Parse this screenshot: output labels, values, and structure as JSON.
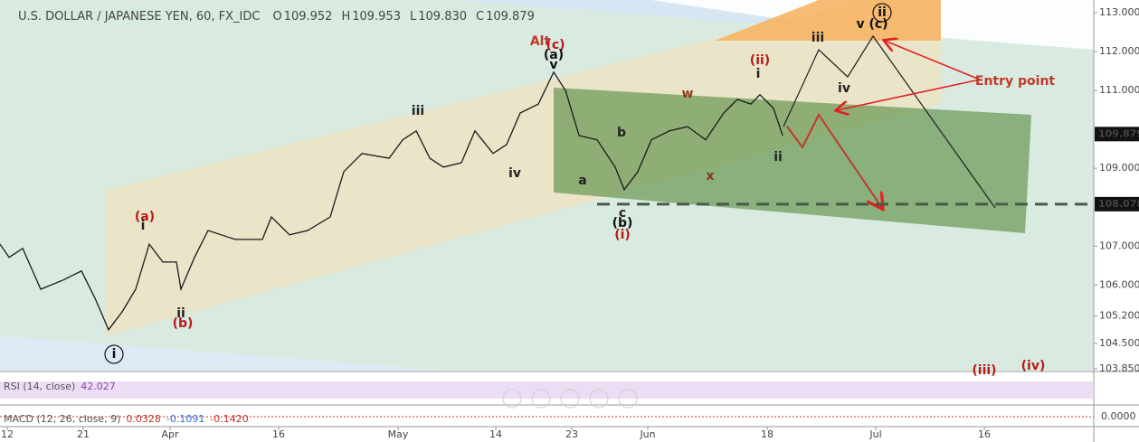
{
  "header": {
    "symbol": "U.S. DOLLAR / JAPANESE YEN, 60, FX_IDC",
    "ohlc": [
      {
        "name": "O",
        "text": "109.952"
      },
      {
        "name": "H",
        "text": "109.953"
      },
      {
        "name": "L",
        "text": "109.830"
      },
      {
        "name": "C",
        "text": "109.879"
      }
    ]
  },
  "chart_data": {
    "type": "line",
    "color": "#1a1a1a",
    "x": [
      -0.67,
      0.17,
      1.42,
      3.08,
      5.17,
      6.83,
      8.08,
      9.33,
      10.58,
      11.83,
      13.08,
      14.33,
      15.58,
      16,
      17.25,
      18.5,
      21,
      23.5,
      24.33,
      26,
      27.67,
      29.75,
      31,
      32.67,
      35.17,
      36.42,
      37.67,
      38.92,
      40.17,
      41.83,
      43.08,
      44.75,
      46,
      47.25,
      48.92,
      50.33,
      51.42,
      52.67,
      54.33,
      56,
      56.83,
      58.08,
      59.33,
      61,
      62.67,
      64.33,
      66,
      67.25,
      68.5,
      69.33,
      70.58,
      71.42
    ],
    "values": [
      107.05,
      106.71,
      106.94,
      105.89,
      106.13,
      106.36,
      105.66,
      104.85,
      105.31,
      105.89,
      107.05,
      106.59,
      106.59,
      105.89,
      106.71,
      107.4,
      107.17,
      107.17,
      107.75,
      107.29,
      107.4,
      107.75,
      108.91,
      109.38,
      109.26,
      109.73,
      109.96,
      109.26,
      109.03,
      109.14,
      109.96,
      109.38,
      109.61,
      110.42,
      110.65,
      111.47,
      111.0,
      109.84,
      109.73,
      109.03,
      108.45,
      108.91,
      109.73,
      109.96,
      110.07,
      109.73,
      110.42,
      110.77,
      110.65,
      110.89,
      110.54,
      109.84
    ],
    "xlim": [
      -0.67,
      100.08
    ],
    "xticks": [
      {
        "value": 0,
        "label": "12"
      },
      {
        "value": 7,
        "label": "21"
      },
      {
        "value": 15,
        "label": "Apr"
      },
      {
        "value": 25,
        "label": "16"
      },
      {
        "value": 36,
        "label": "May"
      },
      {
        "value": 45,
        "label": "14"
      },
      {
        "value": 52,
        "label": "23"
      },
      {
        "value": 59,
        "label": "Jun"
      },
      {
        "value": 70,
        "label": "18"
      },
      {
        "value": 80,
        "label": "Jul"
      },
      {
        "value": 90,
        "label": "16"
      }
    ],
    "ylim": [
      103.8,
      113.325
    ],
    "yticks": [
      {
        "value": 113,
        "label": "113.000"
      },
      {
        "value": 112,
        "label": "112.000"
      },
      {
        "value": 111,
        "label": "111.000"
      },
      {
        "value": 109,
        "label": "109.000"
      },
      {
        "value": 107,
        "label": "107.000"
      },
      {
        "value": 106,
        "label": "106.000"
      },
      {
        "value": 105.2,
        "label": "105.200"
      },
      {
        "value": 104.5,
        "label": "104.500"
      },
      {
        "value": 103.85,
        "label": "103.850"
      }
    ],
    "price_markers": [
      {
        "value": 109.879,
        "label": "109.879"
      },
      {
        "value": 108.078,
        "label": "108.078",
        "dashed": true
      }
    ],
    "annotations": [
      {
        "text": "Alt",
        "color": "#c0392b",
        "small": true
      },
      {
        "text": "(c)",
        "color": "#b71c1c"
      },
      {
        "text": "(a)",
        "color": "#111"
      },
      {
        "text": "v",
        "color": "#111"
      },
      {
        "text": "iii",
        "color": "#222"
      },
      {
        "text": "iv",
        "color": "#222"
      },
      {
        "text": "(a)",
        "color": "#b71c1c"
      },
      {
        "text": "i",
        "color": "#222"
      },
      {
        "text": "ii",
        "color": "#222"
      },
      {
        "text": "(b)",
        "color": "#b71c1c"
      },
      {
        "text": "i",
        "color": "#111",
        "circled": true
      },
      {
        "text": "a",
        "color": "#222"
      },
      {
        "text": "b",
        "color": "#222"
      },
      {
        "text": "c",
        "color": "#222"
      },
      {
        "text": "(b)",
        "color": "#111"
      },
      {
        "text": "(i)",
        "color": "#b71c1c"
      },
      {
        "text": "w",
        "color": "#8b3a1a"
      },
      {
        "text": "x",
        "color": "#8b3a1a"
      },
      {
        "text": "(ii)",
        "color": "#b71c1c"
      },
      {
        "text": "i",
        "color": "#222"
      },
      {
        "text": "ii",
        "color": "#222"
      },
      {
        "text": "iii",
        "color": "#222"
      },
      {
        "text": "iv",
        "color": "#222"
      },
      {
        "text": "v (c)",
        "color": "#111"
      },
      {
        "text": "ii",
        "color": "#111",
        "circled": true
      },
      {
        "text": "Entry point",
        "color": "#c0392b",
        "small": true
      },
      {
        "text": "(iii)",
        "color": "#b71c1c"
      },
      {
        "text": "(iv)",
        "color": "#b71c1c"
      }
    ]
  },
  "indicators": [
    {
      "label": "RSI (14, close)",
      "readings": [
        {
          "text": "42.027",
          "color": "#8e44ad"
        }
      ]
    },
    {
      "label": "MACD (12, 26, close, 9)",
      "readings": [
        {
          "text": "0.0328",
          "color": "#c0392b"
        },
        {
          "text": "-0.1091",
          "color": "#2e6fd8"
        },
        {
          "text": "-0.1420",
          "color": "#c0392b"
        }
      ],
      "axis_label": "0.0000"
    }
  ]
}
